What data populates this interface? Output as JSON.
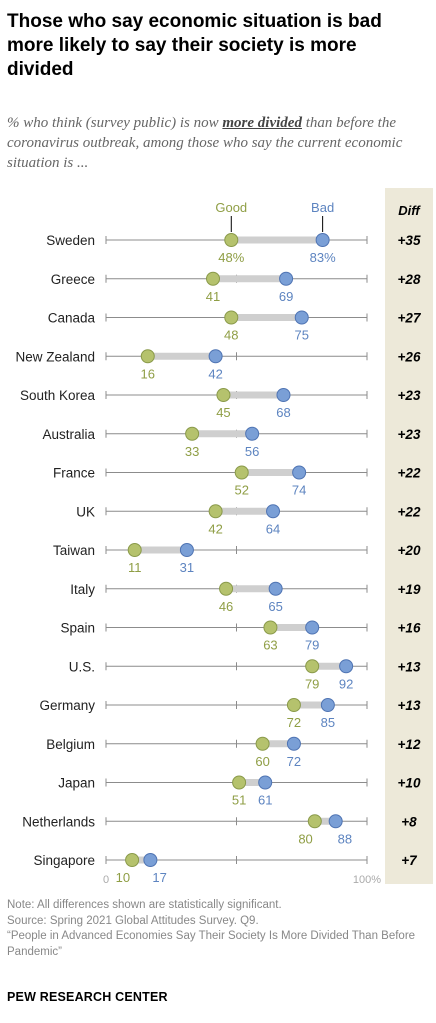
{
  "title": "Those who say economic situation is bad more likely to say their society is more divided",
  "subtitle_pre": "% who think (survey public) is now ",
  "subtitle_emph": "more divided",
  "subtitle_post": " than before the coronavirus outbreak, among those who say the current economic situation is ...",
  "chart_data": {
    "type": "dot",
    "xlim": [
      0,
      100
    ],
    "tick_labels": [
      "0",
      "100%"
    ],
    "diff_header": "Diff",
    "series": [
      {
        "name": "Good",
        "color": "#b5c26d"
      },
      {
        "name": "Bad",
        "color": "#7a9fd6"
      }
    ],
    "rows": [
      {
        "country": "Sweden",
        "good": 48,
        "bad": 83,
        "good_label": "48%",
        "bad_label": "83%",
        "diff": "+35"
      },
      {
        "country": "Greece",
        "good": 41,
        "bad": 69,
        "good_label": "41",
        "bad_label": "69",
        "diff": "+28"
      },
      {
        "country": "Canada",
        "good": 48,
        "bad": 75,
        "good_label": "48",
        "bad_label": "75",
        "diff": "+27"
      },
      {
        "country": "New Zealand",
        "good": 16,
        "bad": 42,
        "good_label": "16",
        "bad_label": "42",
        "diff": "+26"
      },
      {
        "country": "South Korea",
        "good": 45,
        "bad": 68,
        "good_label": "45",
        "bad_label": "68",
        "diff": "+23"
      },
      {
        "country": "Australia",
        "good": 33,
        "bad": 56,
        "good_label": "33",
        "bad_label": "56",
        "diff": "+23"
      },
      {
        "country": "France",
        "good": 52,
        "bad": 74,
        "good_label": "52",
        "bad_label": "74",
        "diff": "+22"
      },
      {
        "country": "UK",
        "good": 42,
        "bad": 64,
        "good_label": "42",
        "bad_label": "64",
        "diff": "+22"
      },
      {
        "country": "Taiwan",
        "good": 11,
        "bad": 31,
        "good_label": "11",
        "bad_label": "31",
        "diff": "+20"
      },
      {
        "country": "Italy",
        "good": 46,
        "bad": 65,
        "good_label": "46",
        "bad_label": "65",
        "diff": "+19"
      },
      {
        "country": "Spain",
        "good": 63,
        "bad": 79,
        "good_label": "63",
        "bad_label": "79",
        "diff": "+16"
      },
      {
        "country": "U.S.",
        "good": 79,
        "bad": 92,
        "good_label": "79",
        "bad_label": "92",
        "diff": "+13"
      },
      {
        "country": "Germany",
        "good": 72,
        "bad": 85,
        "good_label": "72",
        "bad_label": "85",
        "diff": "+13"
      },
      {
        "country": "Belgium",
        "good": 60,
        "bad": 72,
        "good_label": "60",
        "bad_label": "72",
        "diff": "+12"
      },
      {
        "country": "Japan",
        "good": 51,
        "bad": 61,
        "good_label": "51",
        "bad_label": "61",
        "diff": "+10"
      },
      {
        "country": "Netherlands",
        "good": 80,
        "bad": 88,
        "good_label": "80",
        "bad_label": "88",
        "diff": "+8"
      },
      {
        "country": "Singapore",
        "good": 10,
        "bad": 17,
        "good_label": "10",
        "bad_label": "17",
        "diff": "+7"
      }
    ]
  },
  "notes": {
    "note": "Note: All differences shown are statistically significant.",
    "source": "Source: Spring 2021 Global Attitudes Survey. Q9.",
    "report": "“People in Advanced Economies Say Their Society Is More Divided Than Before Pandemic”"
  },
  "brand": "PEW RESEARCH CENTER"
}
